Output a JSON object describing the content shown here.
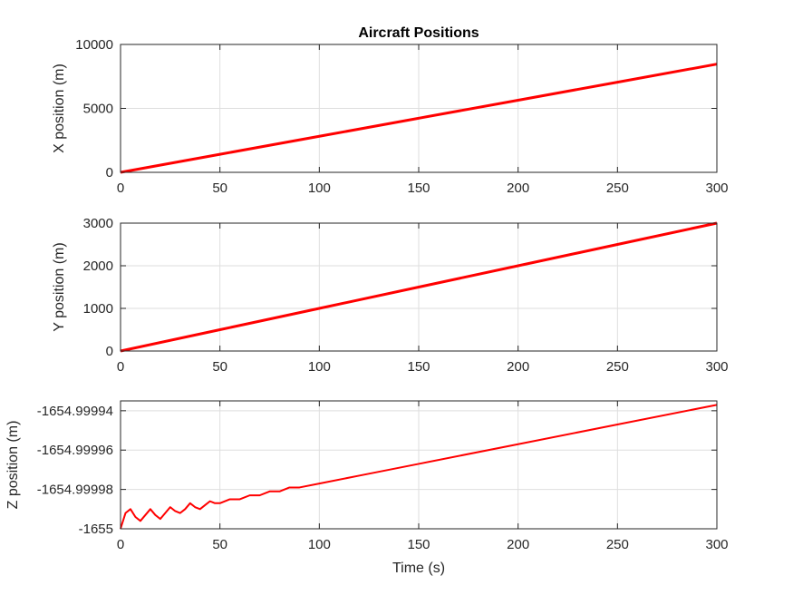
{
  "colors": {
    "series": "#ff0000",
    "axis": "#262626",
    "grid": "#dedede"
  },
  "chart_data": [
    {
      "type": "line",
      "title": "Aircraft Positions",
      "xlabel": "",
      "ylabel": "X position (m)",
      "xlim": [
        0,
        300
      ],
      "ylim": [
        0,
        10000
      ],
      "xticks": [
        0,
        50,
        100,
        150,
        200,
        250,
        300
      ],
      "yticks": [
        0,
        5000,
        10000
      ],
      "xtick_labels": [
        "0",
        "50",
        "100",
        "150",
        "200",
        "250",
        "300"
      ],
      "ytick_labels": [
        "0",
        "5000",
        "10000"
      ],
      "grid": true,
      "series": [
        {
          "x": [
            0,
            50,
            100,
            149,
            151,
            200,
            250,
            300
          ],
          "y": [
            0,
            1410,
            2820,
            4200,
            4260,
            5640,
            7050,
            8460
          ]
        }
      ]
    },
    {
      "type": "line",
      "title": "",
      "xlabel": "",
      "ylabel": "Y position (m)",
      "xlim": [
        0,
        300
      ],
      "ylim": [
        0,
        3000
      ],
      "xticks": [
        0,
        50,
        100,
        150,
        200,
        250,
        300
      ],
      "yticks": [
        0,
        1000,
        2000,
        3000
      ],
      "xtick_labels": [
        "0",
        "50",
        "100",
        "150",
        "200",
        "250",
        "300"
      ],
      "ytick_labels": [
        "0",
        "1000",
        "2000",
        "3000"
      ],
      "grid": true,
      "series": [
        {
          "x": [
            0,
            50,
            100,
            150,
            200,
            250,
            300
          ],
          "y": [
            0,
            500,
            1000,
            1500,
            2000,
            2500,
            3000
          ]
        }
      ]
    },
    {
      "type": "line",
      "title": "",
      "xlabel": "Time (s)",
      "ylabel": "Z position (m)",
      "xlim": [
        0,
        300
      ],
      "ylim": [
        -1655,
        -1654.999935
      ],
      "xticks": [
        0,
        50,
        100,
        150,
        200,
        250,
        300
      ],
      "yticks": [
        -1655,
        -1654.99998,
        -1654.99996,
        -1654.99994
      ],
      "xtick_labels": [
        "0",
        "50",
        "100",
        "150",
        "200",
        "250",
        "300"
      ],
      "ytick_labels": [
        "-1655",
        "-1654.99998",
        "-1654.99996",
        "-1654.99994"
      ],
      "grid": true,
      "series": [
        {
          "x": [
            0,
            2.5,
            5,
            7.5,
            10,
            12.5,
            15,
            17.5,
            20,
            22.5,
            25,
            27.5,
            30,
            32.5,
            35,
            37.5,
            40,
            42.5,
            45,
            47.5,
            50,
            55,
            60,
            65,
            70,
            75,
            80,
            85,
            90,
            100,
            120,
            150,
            200,
            250,
            300
          ],
          "y": [
            -1655.0,
            -1654.999992,
            -1654.99999,
            -1654.999994,
            -1654.999996,
            -1654.999993,
            -1654.99999,
            -1654.999993,
            -1654.999995,
            -1654.999992,
            -1654.999989,
            -1654.999991,
            -1654.999992,
            -1654.99999,
            -1654.999987,
            -1654.999989,
            -1654.99999,
            -1654.999988,
            -1654.999986,
            -1654.999987,
            -1654.999987,
            -1654.999985,
            -1654.999985,
            -1654.999983,
            -1654.999983,
            -1654.999981,
            -1654.999981,
            -1654.999979,
            -1654.999979,
            -1654.999977,
            -1654.999973,
            -1654.999967,
            -1654.999957,
            -1654.999947,
            -1654.999937
          ]
        }
      ]
    }
  ]
}
